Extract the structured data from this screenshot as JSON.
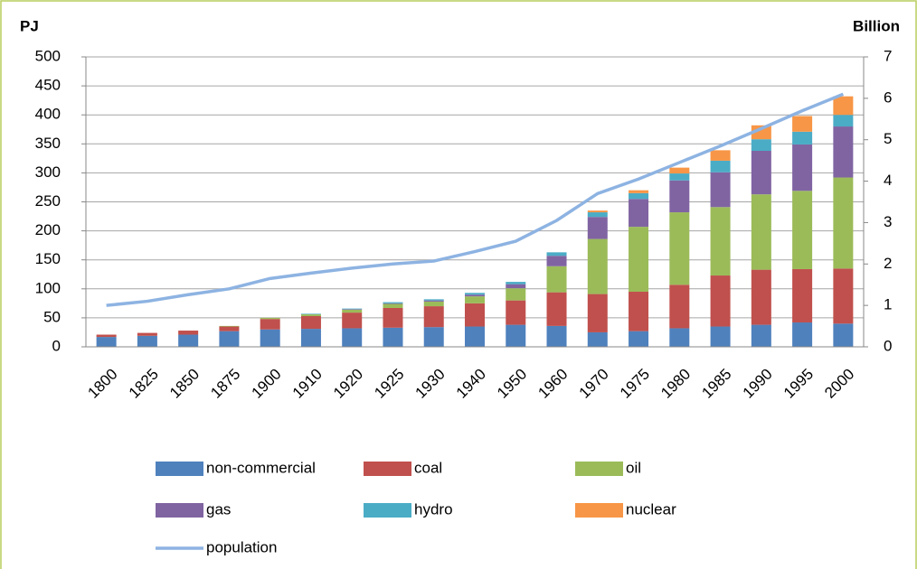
{
  "chart_data": {
    "type": "bar",
    "stacked": true,
    "y_label": "PJ",
    "y2_label": "Billion",
    "categories": [
      "1800",
      "1825",
      "1850",
      "1875",
      "1900",
      "1910",
      "1920",
      "1925",
      "1930",
      "1940",
      "1950",
      "1960",
      "1970",
      "1975",
      "1980",
      "1985",
      "1990",
      "1995",
      "2000"
    ],
    "series": [
      {
        "name": "non-commercial",
        "color": "#4f81bd",
        "values": [
          17,
          19,
          21,
          27,
          30,
          31,
          32,
          33,
          34,
          35,
          38,
          36,
          25,
          27,
          32,
          35,
          38,
          42,
          40
        ]
      },
      {
        "name": "coal",
        "color": "#c0504d",
        "values": [
          4,
          5,
          7,
          8,
          18,
          22,
          27,
          34,
          36,
          40,
          42,
          58,
          66,
          68,
          75,
          88,
          95,
          92,
          95
        ]
      },
      {
        "name": "oil",
        "color": "#9bbb59",
        "values": [
          0,
          0,
          0,
          1,
          2,
          3,
          5,
          7,
          8,
          12,
          21,
          45,
          95,
          112,
          125,
          118,
          130,
          135,
          157
        ]
      },
      {
        "name": "gas",
        "color": "#8064a2",
        "values": [
          0,
          0,
          0,
          0,
          0,
          0,
          1,
          1,
          2,
          3,
          7,
          18,
          38,
          48,
          55,
          60,
          75,
          80,
          88
        ]
      },
      {
        "name": "hydro",
        "color": "#4bacc6",
        "values": [
          0,
          0,
          0,
          0,
          0,
          1,
          1,
          2,
          2,
          3,
          4,
          6,
          8,
          10,
          12,
          20,
          20,
          22,
          20
        ]
      },
      {
        "name": "nuclear",
        "color": "#f79646",
        "values": [
          0,
          0,
          0,
          0,
          0,
          0,
          0,
          0,
          0,
          0,
          0,
          0,
          3,
          5,
          10,
          18,
          24,
          27,
          32
        ]
      },
      {
        "name": "population",
        "color": "#8db3e2",
        "type": "line",
        "axis": "y2",
        "values": [
          1.0,
          1.1,
          1.26,
          1.4,
          1.65,
          1.78,
          1.9,
          2.0,
          2.07,
          2.3,
          2.55,
          3.05,
          3.7,
          4.05,
          4.45,
          4.85,
          5.27,
          5.7,
          6.1
        ]
      }
    ],
    "ylim": [
      0,
      500
    ],
    "yticks": [
      0,
      50,
      100,
      150,
      200,
      250,
      300,
      350,
      400,
      450,
      500
    ],
    "y2lim": [
      0,
      7
    ],
    "y2ticks": [
      0,
      1,
      2,
      3,
      4,
      5,
      6,
      7
    ],
    "grid": true,
    "legend": "bottom"
  }
}
